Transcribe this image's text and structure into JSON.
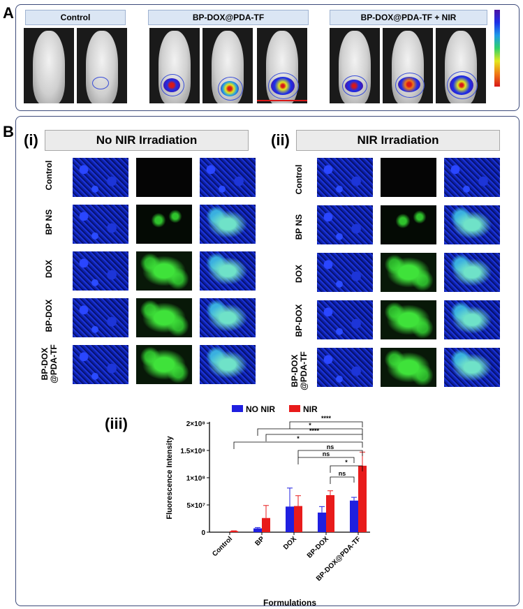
{
  "panel_a": {
    "letter": "A",
    "groups": [
      {
        "label": "Control"
      },
      {
        "label": "BP-DOX@PDA-TF"
      },
      {
        "label": "BP-DOX@PDA-TF + NIR"
      }
    ]
  },
  "panel_b": {
    "letter": "B",
    "section_i": {
      "numeral": "(i)",
      "title": "No NIR Irradiation"
    },
    "section_ii": {
      "numeral": "(ii)",
      "title": "NIR Irradiation"
    },
    "section_iii": {
      "numeral": "(iii)"
    },
    "row_labels": [
      "Control",
      "BP NS",
      "DOX",
      "BP-DOX",
      "BP-DOX\n@PDA-TF"
    ]
  },
  "colors": {
    "no_nir": "#1f1fe0",
    "nir": "#e81b1b",
    "frame": "#3c4a7a"
  },
  "chart_data": {
    "type": "bar",
    "categories": [
      "Control",
      "BP",
      "DOX",
      "BP-DOX",
      "BP-DOX@PDA-TF"
    ],
    "series": [
      {
        "name": "NO NIR",
        "values": [
          0,
          7000000,
          47000000,
          36000000,
          58000000
        ],
        "errors": [
          0,
          1500000,
          34000000,
          11000000,
          6000000
        ]
      },
      {
        "name": "NIR",
        "values": [
          2000000,
          26000000,
          48000000,
          68000000,
          122000000
        ],
        "errors": [
          500000,
          23000000,
          19000000,
          8000000,
          25000000
        ]
      }
    ],
    "xlabel": "Formulations",
    "ylabel": "Fluorescence Intensity",
    "ylim": [
      0,
      200000000
    ],
    "yticks": [
      {
        "value": 0,
        "label": "0"
      },
      {
        "value": 50000000,
        "label": "5×10⁷"
      },
      {
        "value": 100000000,
        "label": "1×10⁸"
      },
      {
        "value": 150000000,
        "label": "1.5×10⁸"
      },
      {
        "value": 200000000,
        "label": "2×10⁸"
      }
    ],
    "legend_position": "top",
    "significance": [
      {
        "label": "****"
      },
      {
        "label": "*"
      },
      {
        "label": "****"
      },
      {
        "label": "*"
      },
      {
        "label": "ns"
      },
      {
        "label": "ns"
      },
      {
        "label": "*"
      },
      {
        "label": "ns"
      }
    ]
  }
}
